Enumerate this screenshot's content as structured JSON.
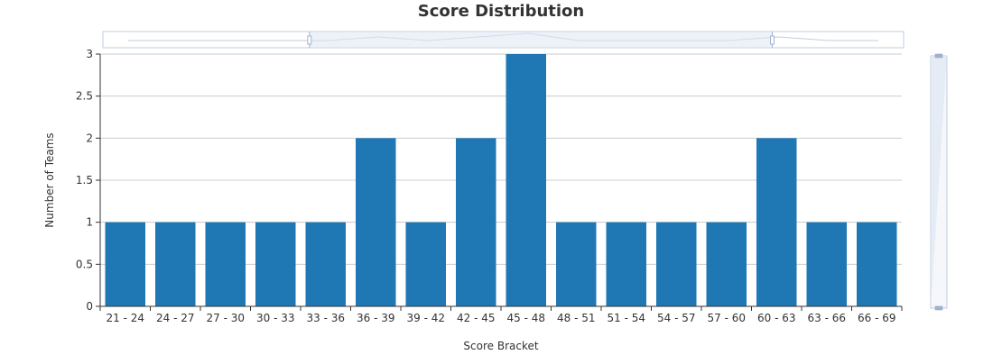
{
  "chart_data": {
    "type": "bar",
    "title": "Score Distribution",
    "xlabel": "Score Bracket",
    "ylabel": "Number of Teams",
    "categories": [
      "21 - 24",
      "24 - 27",
      "27 - 30",
      "30 - 33",
      "33 - 36",
      "36 - 39",
      "39 - 42",
      "42 - 45",
      "45 - 48",
      "48 - 51",
      "51 - 54",
      "54 - 57",
      "57 - 60",
      "60 - 63",
      "63 - 66",
      "66 - 69"
    ],
    "values": [
      1,
      1,
      1,
      1,
      1,
      2,
      1,
      2,
      3,
      1,
      1,
      1,
      1,
      2,
      1,
      1
    ],
    "ylim": [
      0,
      3
    ],
    "yticks": [
      0,
      0.5,
      1,
      1.5,
      2,
      2.5,
      3
    ],
    "grid": true,
    "legend": "none",
    "colors": {
      "bar": "#1f77b4",
      "grid": "#cccccc",
      "axis": "#333333",
      "slider_fill": "#dfe7f2",
      "slider_border": "#c2cde0",
      "handle": "#9fb3d1"
    },
    "controls": {
      "x_zoom_slider": {
        "start": 0.258,
        "end": 0.836
      },
      "y_zoom_slider": {
        "start": 0.0,
        "end": 1.0
      }
    }
  }
}
